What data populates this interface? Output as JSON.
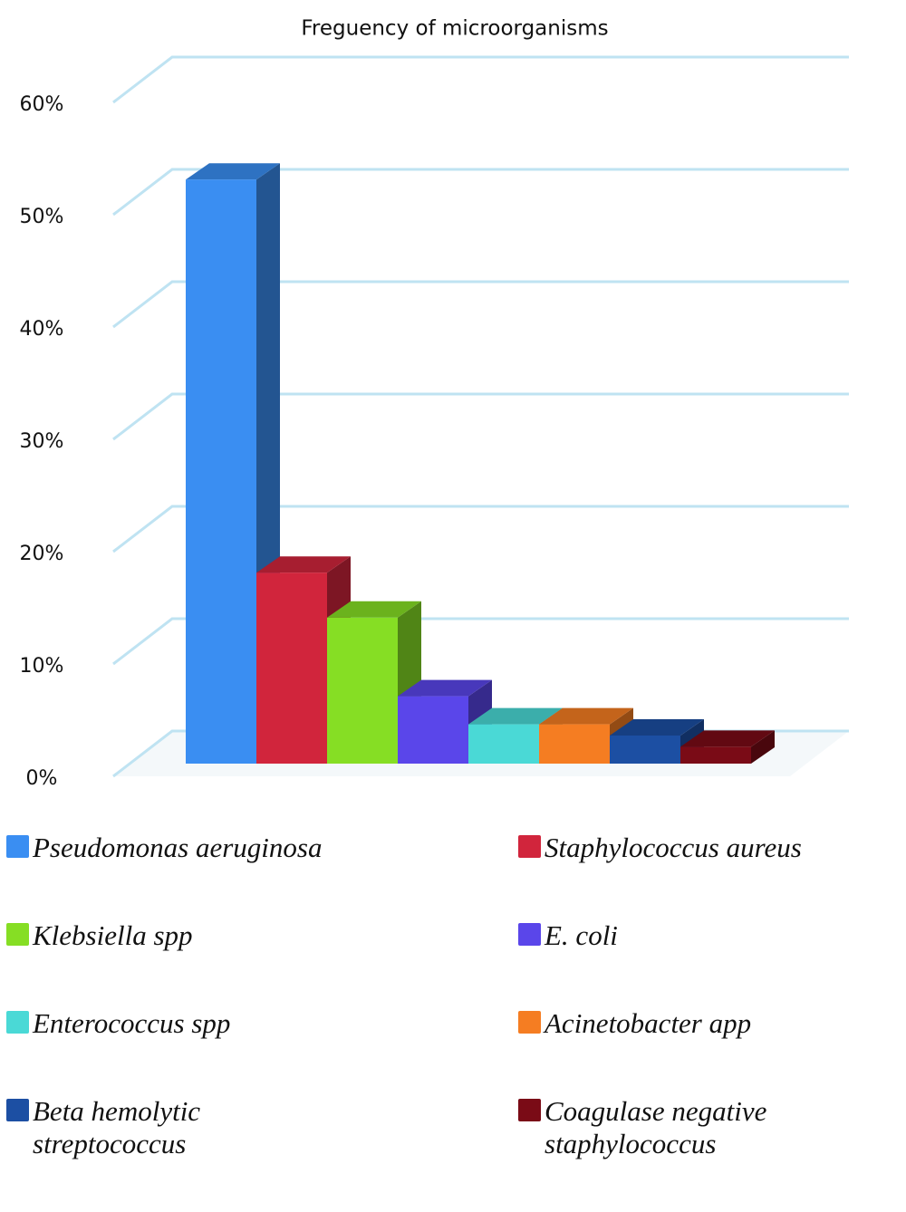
{
  "chart_data": {
    "type": "bar",
    "title": "Freguency of microorganisms",
    "categories": [
      "Pseudomonas aeruginosa",
      "Staphylococcus aureus",
      "Klebsiella spp",
      "E. coli",
      "Enterococcus spp",
      "Acinetobacter app",
      "Beta hemolytic streptococcus",
      "Coagulase negative staphylococcus"
    ],
    "values": [
      52,
      17,
      13,
      6,
      3.5,
      3.5,
      2.5,
      1.5
    ],
    "colors": [
      "#3a8ef2",
      "#d1253c",
      "#86de24",
      "#5a46ea",
      "#4ad9d6",
      "#f57d22",
      "#1c4fa3",
      "#7a0b16"
    ],
    "ylim": [
      0,
      60
    ],
    "yticks": [
      {
        "value": 0,
        "label": "0%"
      },
      {
        "value": 10,
        "label": "10%"
      },
      {
        "value": 20,
        "label": "20%"
      },
      {
        "value": 30,
        "label": "30%"
      },
      {
        "value": 40,
        "label": "40%"
      },
      {
        "value": 50,
        "label": "50%"
      },
      {
        "value": 60,
        "label": "60%"
      }
    ],
    "grid": true
  }
}
